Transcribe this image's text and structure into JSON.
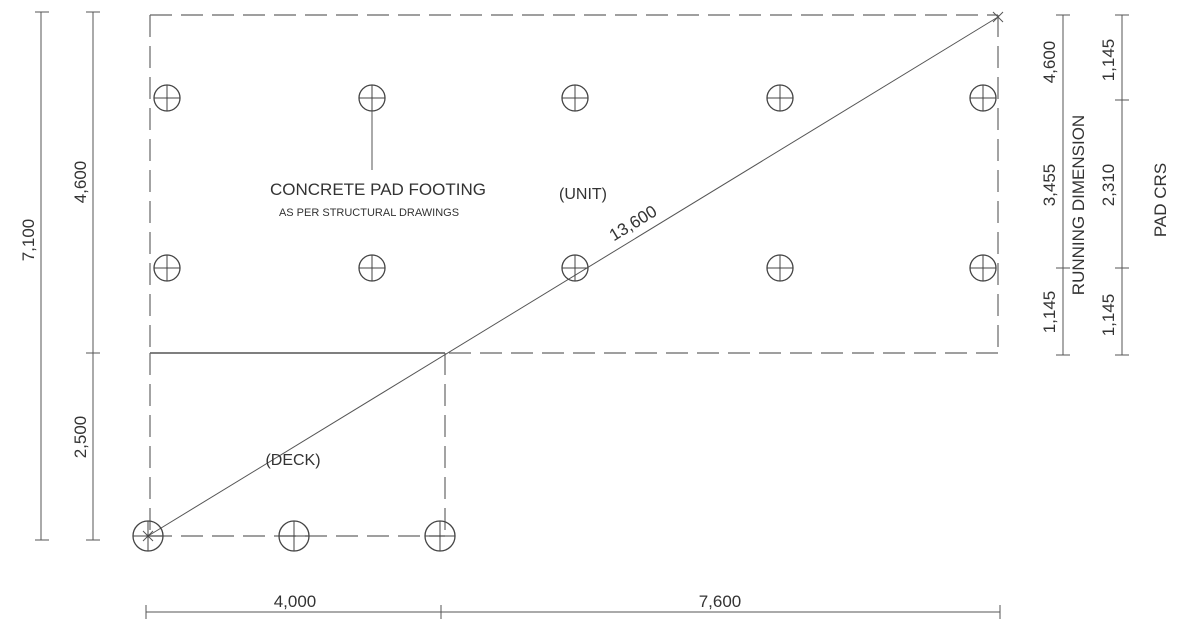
{
  "labels": {
    "concrete_pad_footing": "CONCRETE PAD FOOTING",
    "as_per_structural": "AS PER STRUCTURAL DRAWINGS",
    "unit": "(UNIT)",
    "deck": "(DECK)",
    "diagonal": "13,600",
    "running_dimension": "RUNNING DIMENSION",
    "pad_crs": "PAD CRS"
  },
  "dimensions": {
    "left_overall": "7,100",
    "left_unit": "4,600",
    "left_deck": "2,500",
    "bottom_deck": "4,000",
    "bottom_unit": "7,600",
    "running_total": "4,600",
    "running_mid": "3,455",
    "running_bottom": "1,145",
    "pad_top": "1,145",
    "pad_mid": "2,310",
    "pad_bottom": "1,145"
  },
  "colors": {
    "line": "#333333",
    "background": "#ffffff"
  },
  "footing_icon": "circle-crosshair-icon"
}
